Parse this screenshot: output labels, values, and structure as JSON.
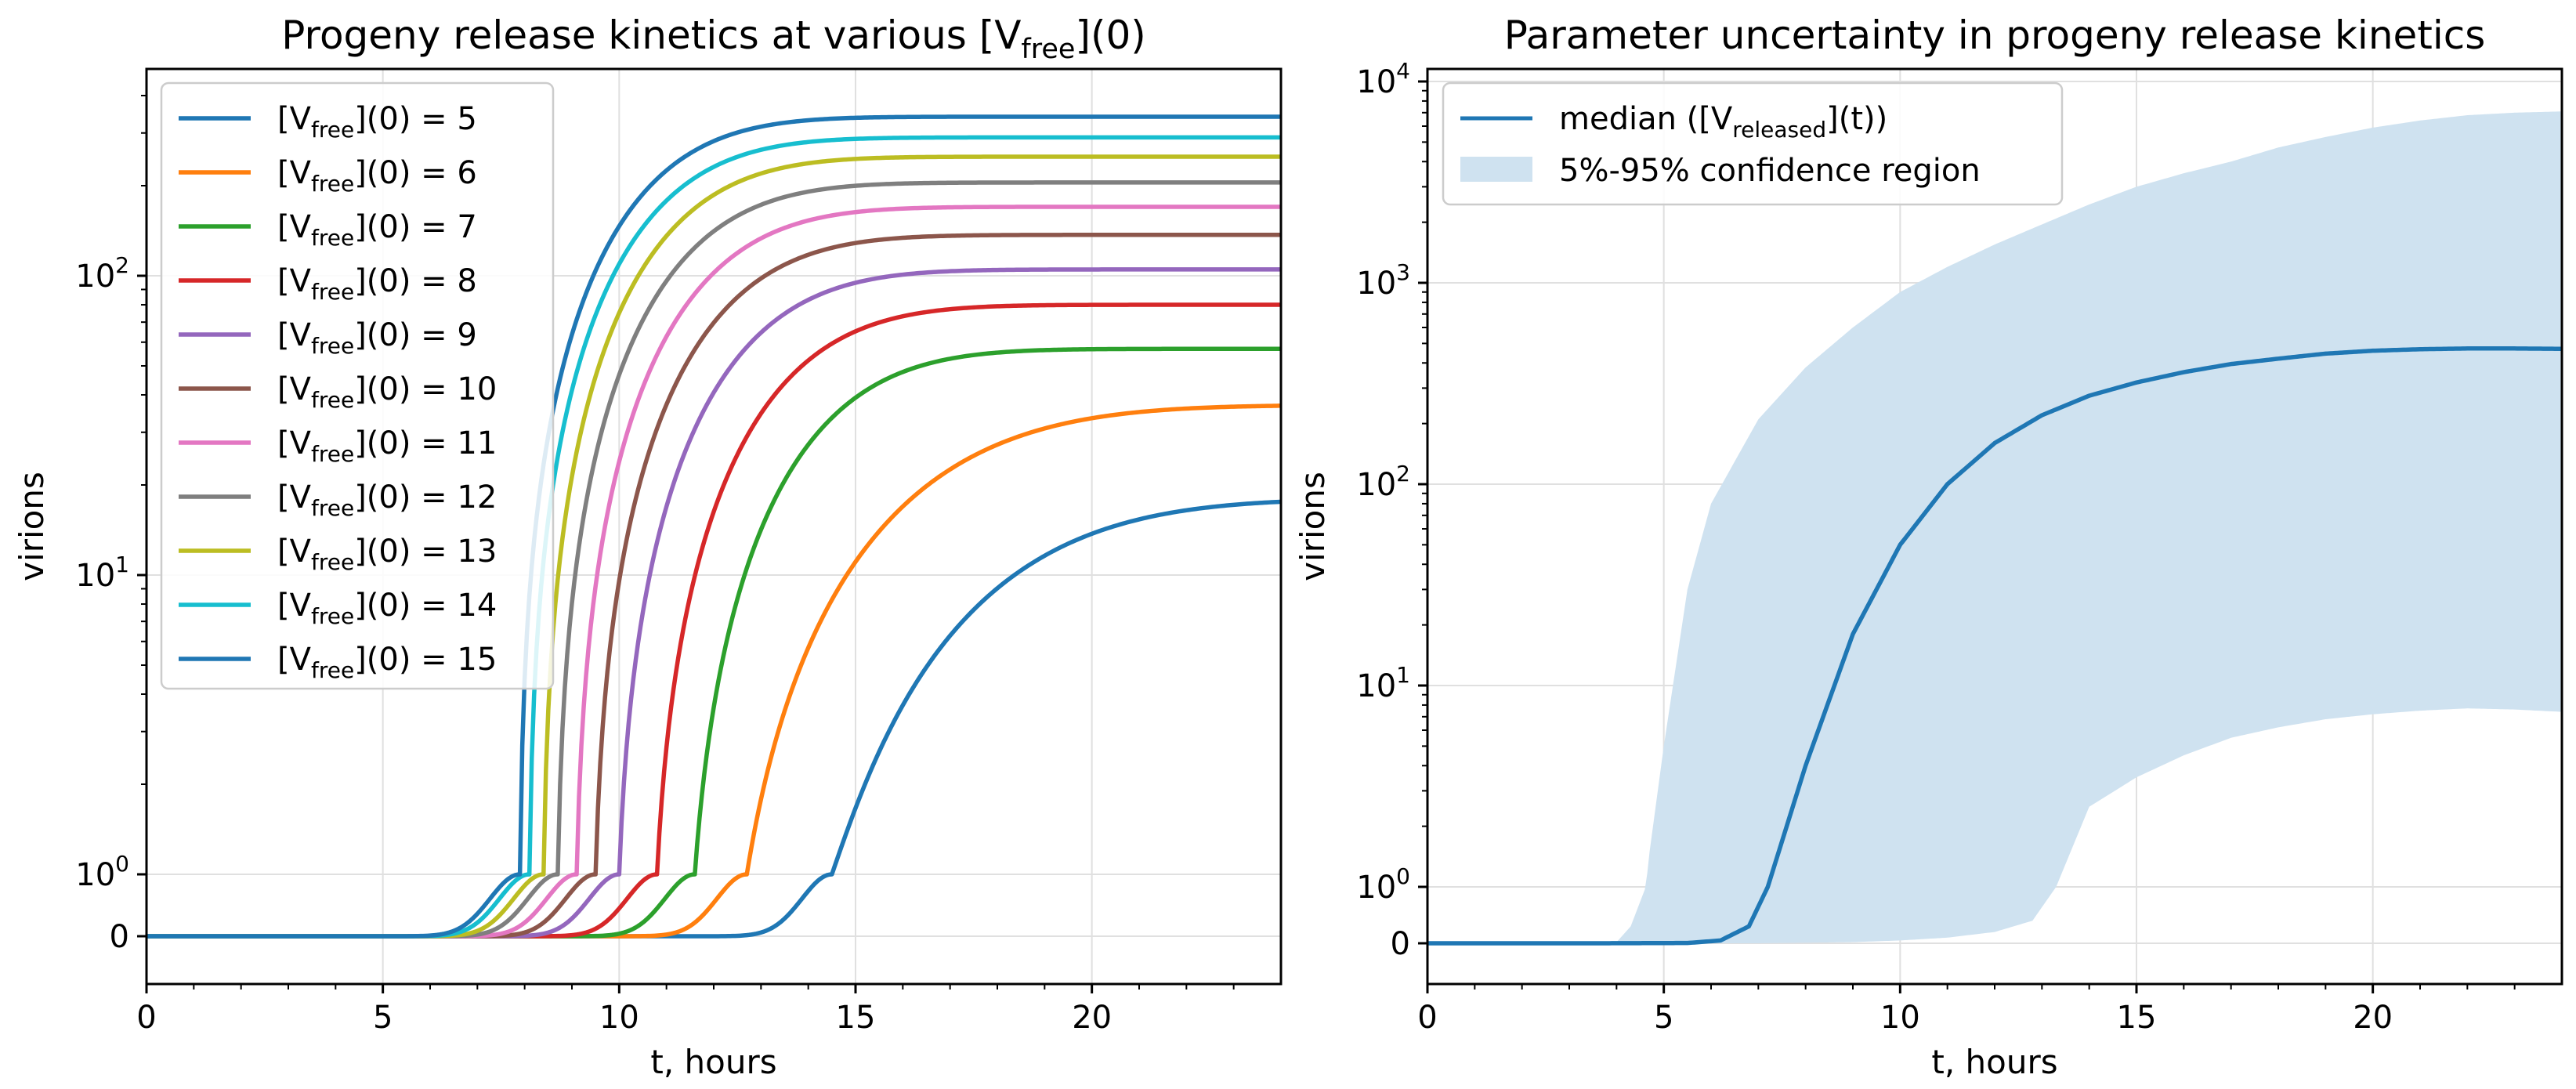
{
  "chart_data": [
    {
      "type": "line",
      "title": "Progeny release kinetics at various [V",
      "title_sub": "free",
      "title_end": "](0)",
      "xlabel": "t, hours",
      "ylabel": "virions",
      "xlim": [
        0,
        24
      ],
      "yscale": "symlog",
      "x_ticks": [
        0,
        5,
        10,
        15,
        20
      ],
      "y_ticks": [
        {
          "value": 0,
          "base": "0",
          "exp": ""
        },
        {
          "value": 1,
          "base": "10",
          "exp": "0"
        },
        {
          "value": 10,
          "base": "10",
          "exp": "1"
        },
        {
          "value": 100,
          "base": "10",
          "exp": "2"
        }
      ],
      "grid": true,
      "legend_position": "upper-left",
      "legend_prefix": "[V",
      "legend_sub": "free",
      "legend_mid": "](0) = ",
      "series": [
        {
          "name": "5",
          "value": 5,
          "color": "#1f77b4",
          "x_onset": 14.5,
          "plateau": 18
        },
        {
          "name": "6",
          "value": 6,
          "color": "#ff7f0e",
          "x_onset": 12.7,
          "plateau": 37
        },
        {
          "name": "7",
          "value": 7,
          "color": "#2ca02c",
          "x_onset": 11.6,
          "plateau": 57
        },
        {
          "name": "8",
          "value": 8,
          "color": "#d62728",
          "x_onset": 10.8,
          "plateau": 80
        },
        {
          "name": "9",
          "value": 9,
          "color": "#9467bd",
          "x_onset": 10.0,
          "plateau": 105
        },
        {
          "name": "10",
          "value": 10,
          "color": "#8c564b",
          "x_onset": 9.5,
          "plateau": 137
        },
        {
          "name": "11",
          "value": 11,
          "color": "#e377c2",
          "x_onset": 9.1,
          "plateau": 170
        },
        {
          "name": "12",
          "value": 12,
          "color": "#7f7f7f",
          "x_onset": 8.7,
          "plateau": 205
        },
        {
          "name": "13",
          "value": 13,
          "color": "#bcbd22",
          "x_onset": 8.4,
          "plateau": 250
        },
        {
          "name": "14",
          "value": 14,
          "color": "#17becf",
          "x_onset": 8.1,
          "plateau": 290
        },
        {
          "name": "15",
          "value": 15,
          "color": "#1f77b4",
          "x_onset": 7.9,
          "plateau": 340
        }
      ]
    },
    {
      "type": "area",
      "title": "Parameter uncertainty in progeny release kinetics",
      "xlabel": "t, hours",
      "ylabel": "virions",
      "xlim": [
        0,
        24
      ],
      "yscale": "symlog",
      "x_ticks": [
        0,
        5,
        10,
        15,
        20
      ],
      "y_ticks": [
        {
          "value": 0,
          "base": "0",
          "exp": ""
        },
        {
          "value": 1,
          "base": "10",
          "exp": "0"
        },
        {
          "value": 10,
          "base": "10",
          "exp": "1"
        },
        {
          "value": 100,
          "base": "10",
          "exp": "2"
        },
        {
          "value": 1000,
          "base": "10",
          "exp": "3"
        },
        {
          "value": 10000,
          "base": "10",
          "exp": "4"
        }
      ],
      "grid": true,
      "legend_position": "upper-left",
      "median_label": "median ([V",
      "median_sub": "released",
      "median_end": "](t))",
      "region_label": "5%-95% confidence region",
      "median_color": "#1f77b4",
      "region_color": "#cfe2f0",
      "median": {
        "x": [
          0,
          3.5,
          5.5,
          6.2,
          6.8,
          7.2,
          8,
          9,
          10,
          11,
          12,
          13,
          14,
          15,
          16,
          17,
          18,
          19,
          20,
          21,
          22,
          23,
          24
        ],
        "y": [
          0,
          0,
          0.005,
          0.05,
          0.3,
          1,
          4,
          18,
          50,
          100,
          160,
          220,
          275,
          320,
          360,
          395,
          420,
          445,
          460,
          468,
          472,
          472,
          470
        ]
      },
      "upper": {
        "x": [
          0,
          3.5,
          4.0,
          4.3,
          4.7,
          5.0,
          5.5,
          6,
          7,
          8,
          9,
          10,
          11,
          12,
          13,
          14,
          15,
          16,
          17,
          18,
          19,
          20,
          21,
          22,
          23,
          24
        ],
        "y": [
          0,
          0,
          0.02,
          0.3,
          1.5,
          5,
          30,
          80,
          210,
          380,
          600,
          900,
          1200,
          1550,
          1950,
          2450,
          3000,
          3500,
          4000,
          4700,
          5300,
          5900,
          6400,
          6800,
          7000,
          7100
        ]
      },
      "lower": {
        "x": [
          0,
          7,
          9,
          10,
          11,
          12,
          12.8,
          13.3,
          14,
          15,
          16,
          17,
          18,
          19,
          20,
          21,
          22,
          23,
          24
        ],
        "y": [
          0,
          0,
          0.02,
          0.05,
          0.1,
          0.2,
          0.4,
          1,
          2.5,
          3.5,
          4.5,
          5.5,
          6.2,
          6.8,
          7.2,
          7.5,
          7.7,
          7.6,
          7.4
        ]
      }
    }
  ]
}
